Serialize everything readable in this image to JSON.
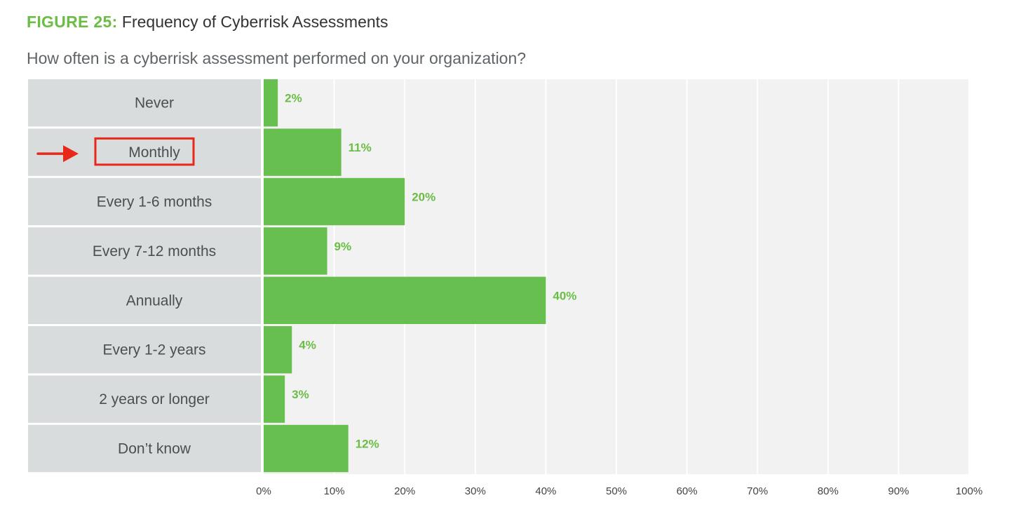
{
  "figure": {
    "label": "FIGURE 25:",
    "title": "Frequency of Cyberrisk Assessments",
    "question": "How often is a cyberrisk assessment performed on your organization?"
  },
  "colors": {
    "bar": "#66bf4e",
    "value_label": "#6bbd45",
    "category_panel": "#d9dcdc",
    "plot_background": "#f2f2f2",
    "grid": "#ffffff",
    "annotation": "#e8281b"
  },
  "annotation": {
    "highlighted_category": "Monthly",
    "icon": "red-arrow-icon"
  },
  "chart_data": {
    "type": "bar",
    "orientation": "horizontal",
    "categories": [
      "Never",
      "Monthly",
      "Every 1-6 months",
      "Every 7-12 months",
      "Annually",
      "Every 1-2 years",
      "2 years or longer",
      "Don’t know"
    ],
    "values": [
      2,
      11,
      20,
      9,
      40,
      4,
      3,
      12
    ],
    "value_labels": [
      "2%",
      "11%",
      "20%",
      "9%",
      "40%",
      "4%",
      "3%",
      "12%"
    ],
    "xlim": [
      0,
      100
    ],
    "xticks": [
      0,
      10,
      20,
      30,
      40,
      50,
      60,
      70,
      80,
      90,
      100
    ],
    "xtick_labels": [
      "0%",
      "10%",
      "20%",
      "30%",
      "40%",
      "50%",
      "60%",
      "70%",
      "80%",
      "90%",
      "100%"
    ],
    "grid": true
  }
}
